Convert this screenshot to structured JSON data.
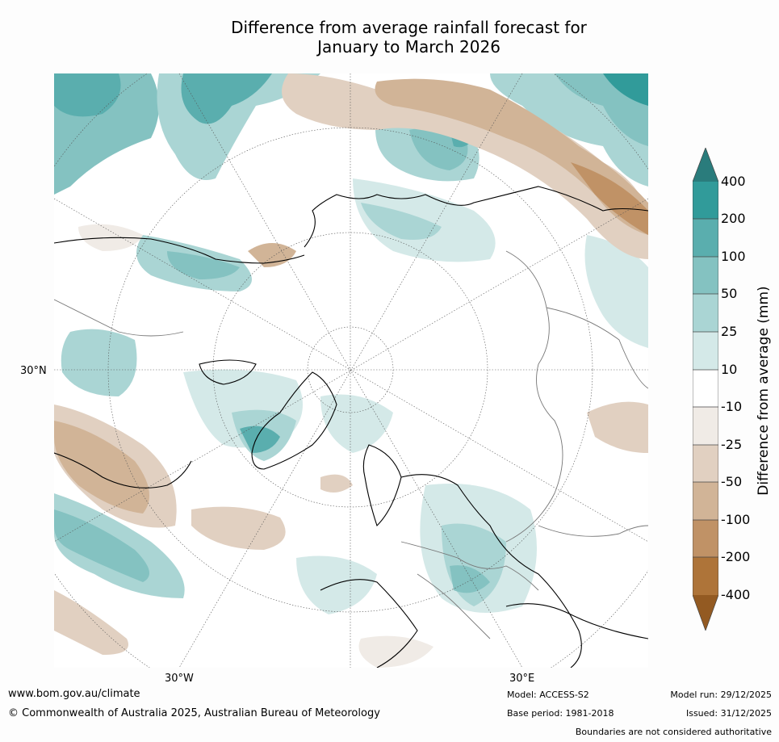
{
  "title": {
    "line1": "Difference from average rainfall forecast for",
    "line2": "January to March 2026"
  },
  "map": {
    "projection": "polar stereographic, north pole",
    "labels": {
      "lat": "30°N",
      "lon_west": "30°W",
      "lon_east": "30°E"
    }
  },
  "colorbar": {
    "title": "Difference from average (mm)",
    "ticks": [
      "400",
      "200",
      "100",
      "50",
      "25",
      "10",
      "-10",
      "-25",
      "-50",
      "-100",
      "-200",
      "-400"
    ],
    "colors": {
      "above_400": "#2a7c7c",
      "200_400": "#319b9a",
      "100_200": "#5aaeae",
      "50_100": "#84c2c1",
      "25_50": "#aad5d4",
      "10_25": "#d4e9e8",
      "-10_10": "#ffffff",
      "-25_-10": "#f0ebe6",
      "-50_-25": "#e1d0c1",
      "-100_-50": "#d1b497",
      "-200_-100": "#c09266",
      "-400_-200": "#ae7439",
      "below_-400": "#935a22"
    }
  },
  "footer": {
    "website": "www.bom.gov.au/climate",
    "copyright": "© Commonwealth of Australia 2025, Australian Bureau of Meteorology",
    "model": "Model: ACCESS-S2",
    "base_period": "Base period: 1981-2018",
    "model_run": "Model run: 29/12/2025",
    "issued": "Issued: 31/12/2025",
    "disclaimer": "Boundaries are not considered authoritative"
  }
}
